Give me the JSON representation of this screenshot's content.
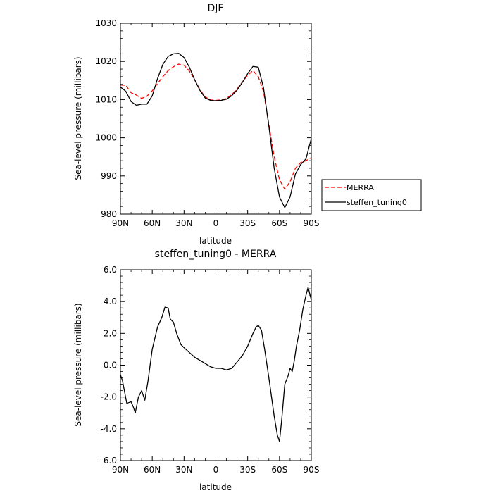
{
  "chart_data": [
    {
      "type": "line",
      "title": "DJF",
      "xlabel": "latitude",
      "ylabel": "Sea-level pressure (millibars)",
      "x_tick_labels": [
        "90N",
        "60N",
        "30N",
        "0",
        "30S",
        "60S",
        "90S"
      ],
      "x_tick_values": [
        -90,
        -60,
        -30,
        0,
        30,
        60,
        90
      ],
      "xlim": [
        -90,
        90
      ],
      "ylim": [
        980,
        1030
      ],
      "y_ticks": [
        980,
        990,
        1000,
        1010,
        1020,
        1030
      ],
      "y_tick_labels": [
        "980",
        "990",
        "1000",
        "1010",
        "1020",
        "1030"
      ],
      "legend_position": "right",
      "series": [
        {
          "name": "MERRA",
          "color": "#ff0000",
          "dash": "dashed",
          "points": [
            [
              -90,
              1013.8
            ],
            [
              -85,
              1013.8
            ],
            [
              -80,
              1011.8
            ],
            [
              -75,
              1011.2
            ],
            [
              -70,
              1010.3
            ],
            [
              -65,
              1010.9
            ],
            [
              -60,
              1012.3
            ],
            [
              -55,
              1014.2
            ],
            [
              -50,
              1016.0
            ],
            [
              -45,
              1017.6
            ],
            [
              -40,
              1018.6
            ],
            [
              -35,
              1019.3
            ],
            [
              -30,
              1019.0
            ],
            [
              -25,
              1017.5
            ],
            [
              -20,
              1015.2
            ],
            [
              -15,
              1012.6
            ],
            [
              -10,
              1010.7
            ],
            [
              -5,
              1009.9
            ],
            [
              0,
              1009.8
            ],
            [
              5,
              1009.9
            ],
            [
              10,
              1010.3
            ],
            [
              15,
              1011.3
            ],
            [
              20,
              1012.8
            ],
            [
              25,
              1014.6
            ],
            [
              30,
              1016.4
            ],
            [
              35,
              1017.6
            ],
            [
              40,
              1016.0
            ],
            [
              45,
              1012.0
            ],
            [
              50,
              1003.5
            ],
            [
              55,
              995.0
            ],
            [
              60,
              989.0
            ],
            [
              65,
              986.5
            ],
            [
              70,
              988.5
            ],
            [
              75,
              992.0
            ],
            [
              80,
              993.5
            ],
            [
              85,
              994.0
            ],
            [
              90,
              994.8
            ]
          ]
        },
        {
          "name": "steffen_tuning0",
          "color": "#000000",
          "dash": "solid",
          "points": [
            [
              -90,
              1013.3
            ],
            [
              -85,
              1012.2
            ],
            [
              -80,
              1009.5
            ],
            [
              -75,
              1008.5
            ],
            [
              -70,
              1008.8
            ],
            [
              -65,
              1008.8
            ],
            [
              -60,
              1011.0
            ],
            [
              -55,
              1015.5
            ],
            [
              -50,
              1019.2
            ],
            [
              -45,
              1021.3
            ],
            [
              -40,
              1022.0
            ],
            [
              -35,
              1022.1
            ],
            [
              -30,
              1021.0
            ],
            [
              -25,
              1018.5
            ],
            [
              -20,
              1015.2
            ],
            [
              -15,
              1012.4
            ],
            [
              -10,
              1010.4
            ],
            [
              -5,
              1009.8
            ],
            [
              0,
              1009.7
            ],
            [
              5,
              1009.8
            ],
            [
              10,
              1010.1
            ],
            [
              15,
              1011.0
            ],
            [
              20,
              1012.5
            ],
            [
              25,
              1014.5
            ],
            [
              30,
              1016.8
            ],
            [
              35,
              1018.7
            ],
            [
              40,
              1018.5
            ],
            [
              45,
              1013.0
            ],
            [
              50,
              1003.0
            ],
            [
              55,
              992.0
            ],
            [
              60,
              984.5
            ],
            [
              65,
              981.7
            ],
            [
              70,
              984.5
            ],
            [
              75,
              990.5
            ],
            [
              80,
              993.0
            ],
            [
              85,
              994.5
            ],
            [
              90,
              999.8
            ]
          ]
        }
      ]
    },
    {
      "type": "line",
      "title": "steffen_tuning0 - MERRA",
      "xlabel": "latitude",
      "ylabel": "Sea-level pressure (millibars)",
      "x_tick_labels": [
        "90N",
        "60N",
        "30N",
        "0",
        "30S",
        "60S",
        "90S"
      ],
      "x_tick_values": [
        -90,
        -60,
        -30,
        0,
        30,
        60,
        90
      ],
      "xlim": [
        -90,
        90
      ],
      "ylim": [
        -6,
        6
      ],
      "y_ticks": [
        -6,
        -4,
        -2,
        0,
        2,
        4,
        6
      ],
      "y_tick_labels": [
        "-6.0",
        "-4.0",
        "-2.0",
        "0.0",
        "2.0",
        "4.0",
        "6.0"
      ],
      "series": [
        {
          "color": "#000000",
          "dash": "solid",
          "points": [
            [
              -90,
              -0.6
            ],
            [
              -88,
              -1.0
            ],
            [
              -86,
              -1.7
            ],
            [
              -84,
              -2.4
            ],
            [
              -80,
              -2.3
            ],
            [
              -78,
              -2.6
            ],
            [
              -76,
              -3.0
            ],
            [
              -73,
              -2.0
            ],
            [
              -70,
              -1.6
            ],
            [
              -67,
              -2.2
            ],
            [
              -64,
              -1.0
            ],
            [
              -60,
              1.0
            ],
            [
              -55,
              2.4
            ],
            [
              -51,
              3.0
            ],
            [
              -48,
              3.65
            ],
            [
              -45,
              3.6
            ],
            [
              -43,
              2.9
            ],
            [
              -40,
              2.7
            ],
            [
              -37,
              2.0
            ],
            [
              -33,
              1.3
            ],
            [
              -30,
              1.1
            ],
            [
              -25,
              0.8
            ],
            [
              -20,
              0.5
            ],
            [
              -15,
              0.3
            ],
            [
              -10,
              0.1
            ],
            [
              -5,
              -0.1
            ],
            [
              0,
              -0.2
            ],
            [
              5,
              -0.2
            ],
            [
              10,
              -0.3
            ],
            [
              15,
              -0.2
            ],
            [
              20,
              0.2
            ],
            [
              25,
              0.6
            ],
            [
              30,
              1.2
            ],
            [
              35,
              2.0
            ],
            [
              38,
              2.4
            ],
            [
              40,
              2.5
            ],
            [
              43,
              2.2
            ],
            [
              46,
              1.0
            ],
            [
              50,
              -0.8
            ],
            [
              55,
              -3.2
            ],
            [
              58,
              -4.4
            ],
            [
              60,
              -4.8
            ],
            [
              62,
              -3.5
            ],
            [
              65,
              -1.2
            ],
            [
              68,
              -0.7
            ],
            [
              70,
              -0.2
            ],
            [
              72,
              -0.4
            ],
            [
              74,
              0.3
            ],
            [
              76,
              1.2
            ],
            [
              79,
              2.2
            ],
            [
              82,
              3.5
            ],
            [
              85,
              4.4
            ],
            [
              87,
              4.9
            ],
            [
              90,
              4.1
            ]
          ]
        }
      ]
    }
  ]
}
